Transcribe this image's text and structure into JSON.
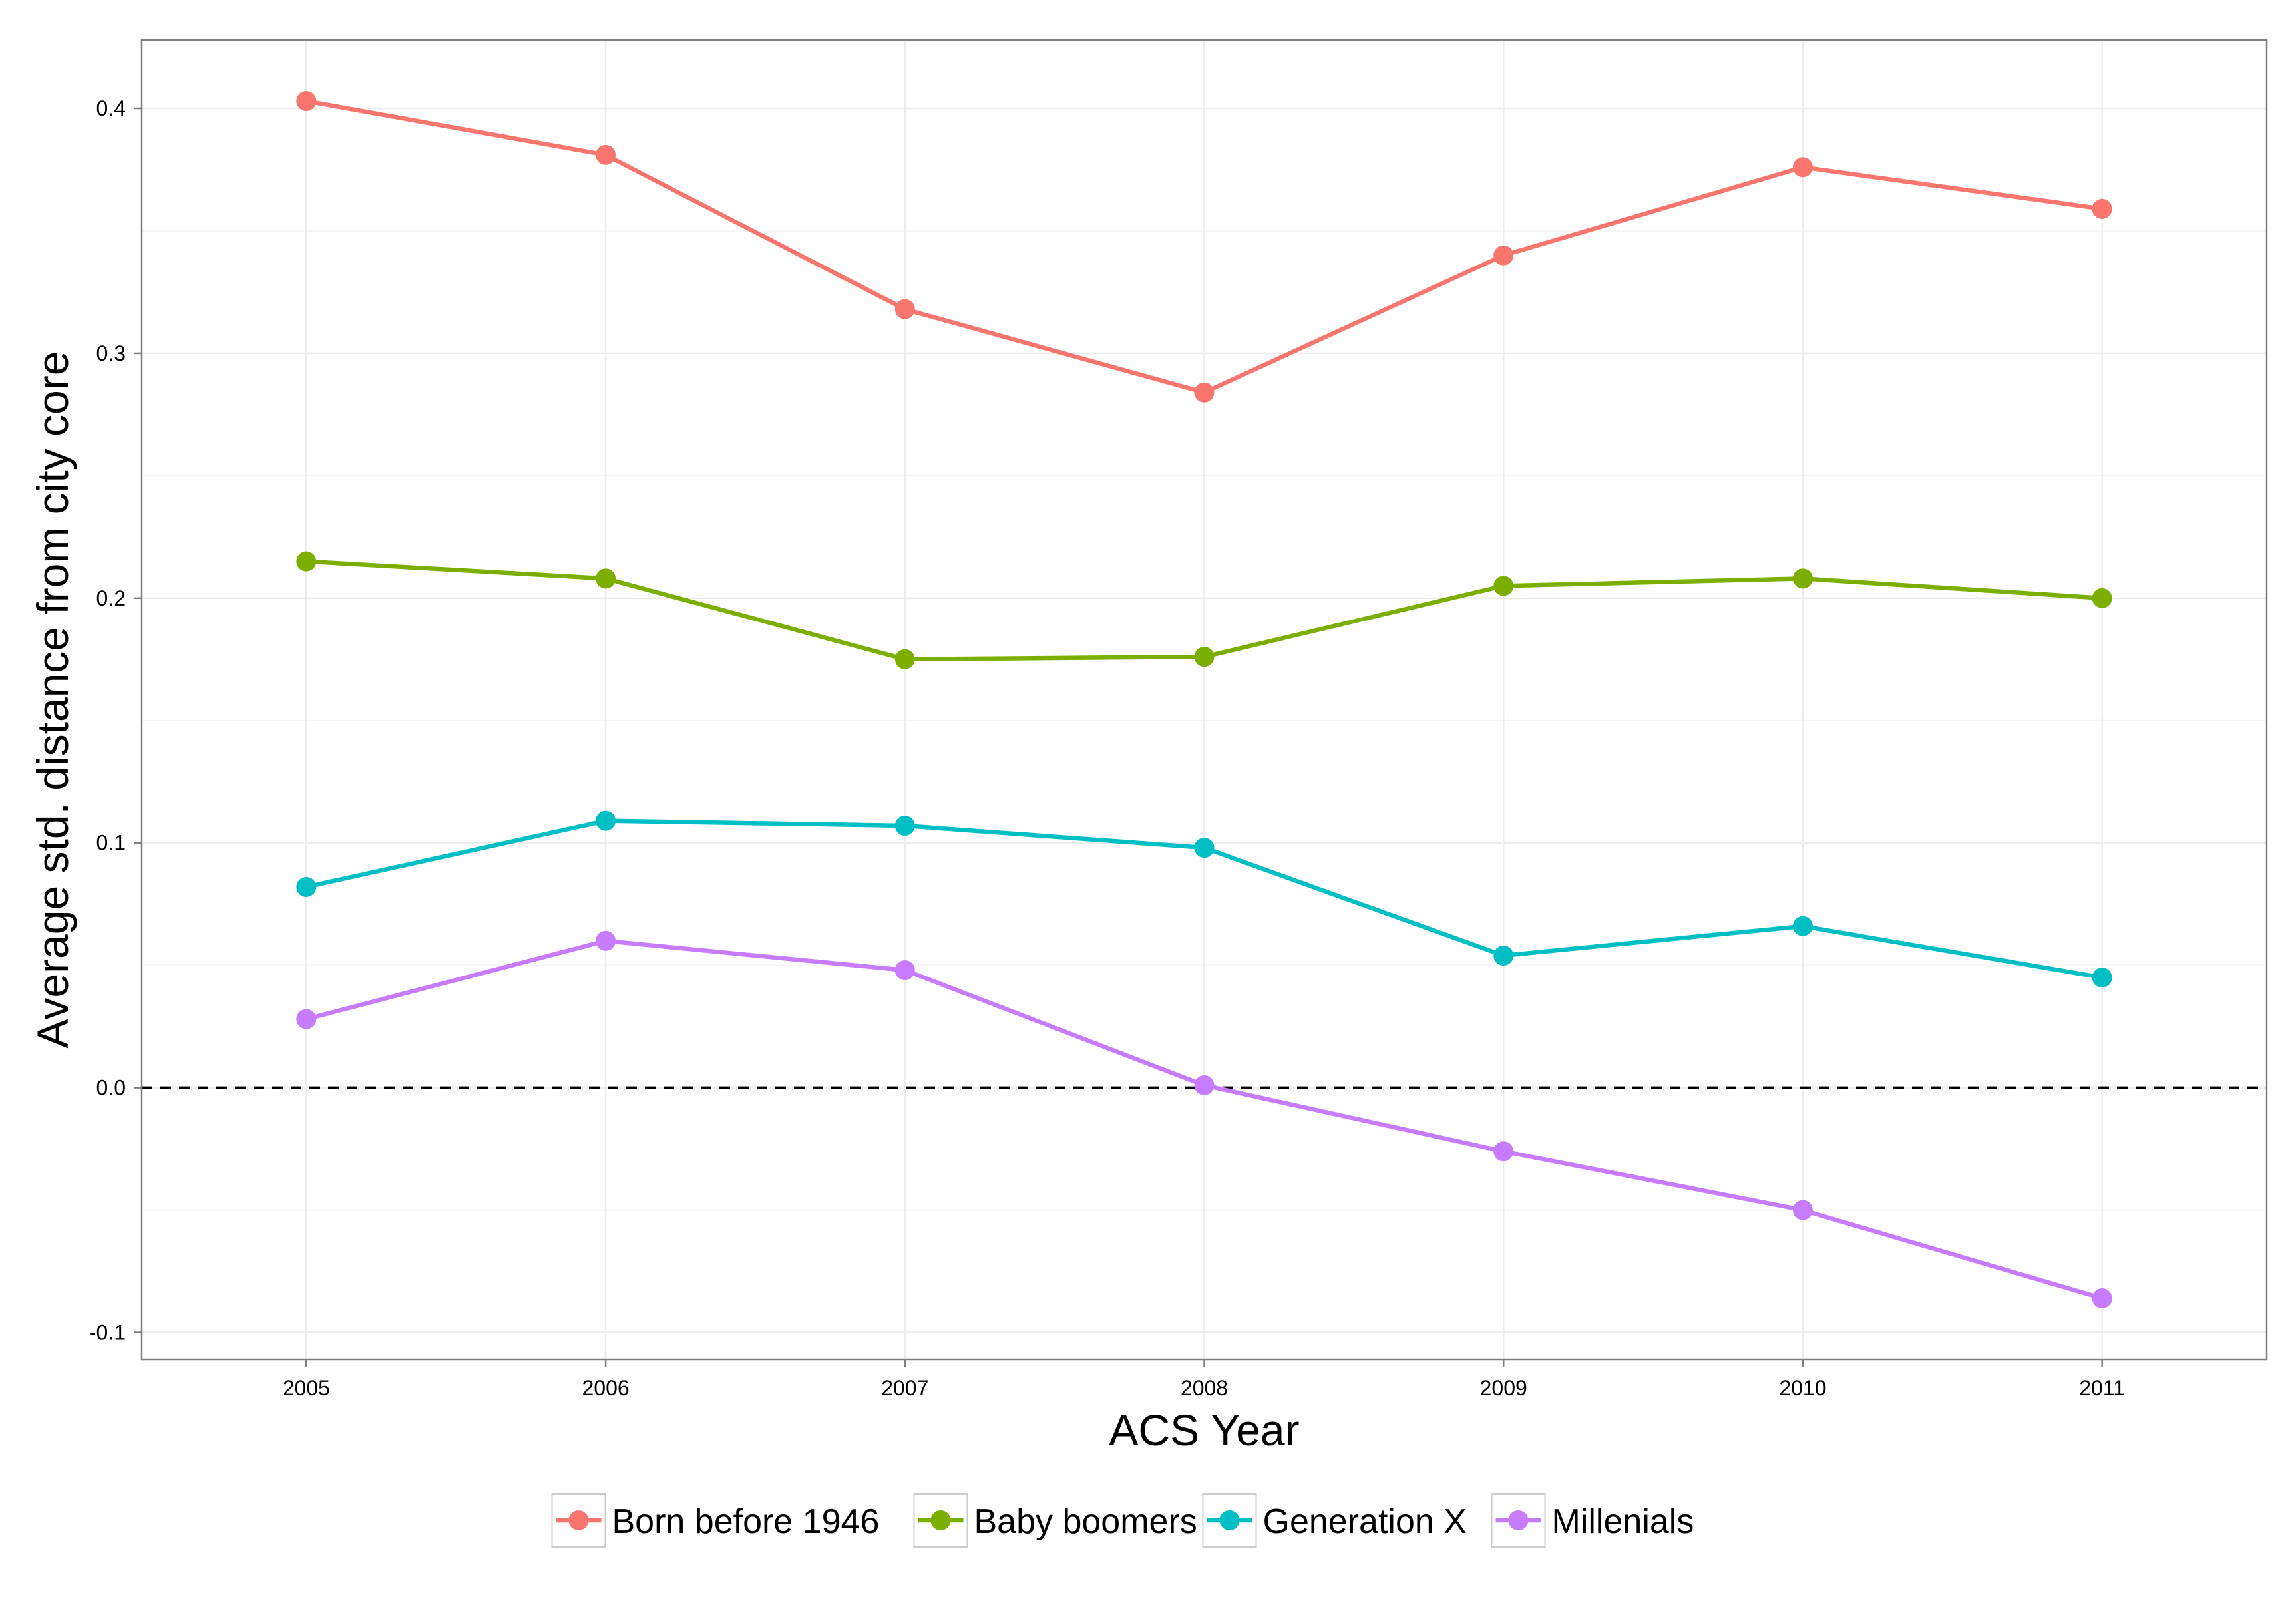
{
  "chart_data": {
    "type": "line",
    "title": "",
    "xlabel": "ACS Year",
    "ylabel": "Average std. distance from city core",
    "x": [
      2005,
      2006,
      2007,
      2008,
      2009,
      2010,
      2011
    ],
    "x_tick_labels": [
      "2005",
      "2006",
      "2007",
      "2008",
      "2009",
      "2010",
      "2011"
    ],
    "xlim": [
      2004.45,
      2011.55
    ],
    "ylim": [
      -0.111,
      0.428
    ],
    "y_ticks": [
      -0.1,
      0.0,
      0.1,
      0.2,
      0.3,
      0.4
    ],
    "y_tick_labels": [
      "-0.1",
      "0.0",
      "0.1",
      "0.2",
      "0.3",
      "0.4"
    ],
    "reference_line": {
      "y": 0.0,
      "style": "dashed",
      "color": "#000000"
    },
    "grid": true,
    "legend_position": "bottom",
    "series": [
      {
        "name": "Born before 1946",
        "color": "#F8766D",
        "values": [
          0.403,
          0.381,
          0.318,
          0.284,
          0.34,
          0.376,
          0.359
        ]
      },
      {
        "name": "Baby boomers",
        "color": "#7CAE00",
        "values": [
          0.215,
          0.208,
          0.175,
          0.176,
          0.205,
          0.208,
          0.2
        ]
      },
      {
        "name": "Generation X",
        "color": "#00BFC4",
        "values": [
          0.082,
          0.109,
          0.107,
          0.098,
          0.054,
          0.066,
          0.045
        ]
      },
      {
        "name": "Millenials",
        "color": "#C77CFF",
        "values": [
          0.028,
          0.06,
          0.048,
          0.001,
          -0.026,
          -0.05,
          -0.086
        ]
      }
    ]
  }
}
